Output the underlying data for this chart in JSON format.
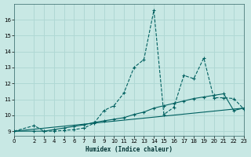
{
  "xlabel": "Humidex (Indice chaleur)",
  "background_color": "#c8e8e4",
  "grid_color": "#b0d8d4",
  "line_color": "#006060",
  "xlim": [
    0,
    23
  ],
  "ylim": [
    8.7,
    17.0
  ],
  "xticks": [
    0,
    2,
    3,
    4,
    5,
    6,
    7,
    8,
    9,
    10,
    11,
    12,
    13,
    14,
    15,
    16,
    17,
    18,
    19,
    20,
    21,
    22,
    23
  ],
  "yticks": [
    9,
    10,
    11,
    12,
    13,
    14,
    15,
    16
  ],
  "series1_x": [
    0,
    2,
    3,
    4,
    5,
    6,
    7,
    8,
    9,
    10,
    11,
    12,
    13,
    14,
    15,
    16,
    17,
    18,
    19,
    20,
    21,
    22,
    23
  ],
  "series1_y": [
    9.0,
    9.35,
    9.0,
    9.0,
    9.05,
    9.1,
    9.2,
    9.5,
    10.3,
    10.6,
    11.4,
    13.0,
    13.5,
    16.6,
    10.05,
    10.5,
    12.5,
    12.3,
    13.6,
    11.1,
    11.1,
    11.05,
    10.4
  ],
  "series2_x": [
    0,
    2,
    3,
    4,
    5,
    6,
    7,
    8,
    9,
    10,
    11,
    12,
    13,
    14,
    15,
    16,
    17,
    18,
    19,
    20,
    21,
    22,
    23
  ],
  "series2_y": [
    9.0,
    9.0,
    9.0,
    9.1,
    9.2,
    9.3,
    9.4,
    9.55,
    9.65,
    9.75,
    9.85,
    10.05,
    10.2,
    10.45,
    10.6,
    10.75,
    10.9,
    11.05,
    11.15,
    11.25,
    11.35,
    10.3,
    10.45
  ],
  "series3_x": [
    0,
    23
  ],
  "series3_y": [
    9.0,
    10.45
  ]
}
